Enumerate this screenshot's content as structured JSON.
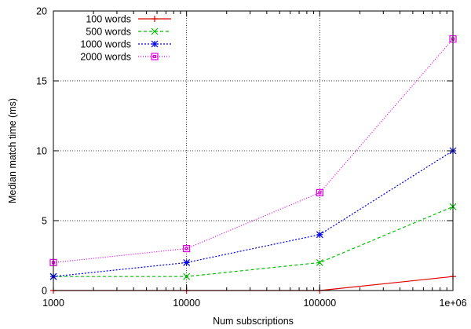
{
  "chart_data": {
    "type": "line",
    "xlabel": "Num subscriptions",
    "ylabel": "Median match time (ms)",
    "x_scale": "log",
    "xlim": [
      1000,
      1000000
    ],
    "ylim": [
      0,
      20
    ],
    "x_ticks": [
      "1000",
      "10000",
      "100000",
      "1e+06"
    ],
    "y_ticks": [
      "0",
      "5",
      "10",
      "15",
      "20"
    ],
    "grid": true,
    "legend_position": "top-left",
    "x": [
      1000,
      10000,
      100000,
      1000000
    ],
    "series": [
      {
        "name": "100 words",
        "values": [
          0,
          0,
          0,
          1
        ],
        "color": "#e00000",
        "marker": "plus",
        "dash": "solid"
      },
      {
        "name": "500 words",
        "values": [
          1,
          1,
          2,
          6
        ],
        "color": "#00c000",
        "marker": "cross",
        "dash": "dashed"
      },
      {
        "name": "1000 words",
        "values": [
          1,
          2,
          4,
          10
        ],
        "color": "#0000e0",
        "marker": "star",
        "dash": "dotted"
      },
      {
        "name": "2000 words",
        "values": [
          2,
          3,
          7,
          18
        ],
        "color": "#e000e0",
        "marker": "square",
        "dash": "dotted-fine"
      }
    ]
  }
}
